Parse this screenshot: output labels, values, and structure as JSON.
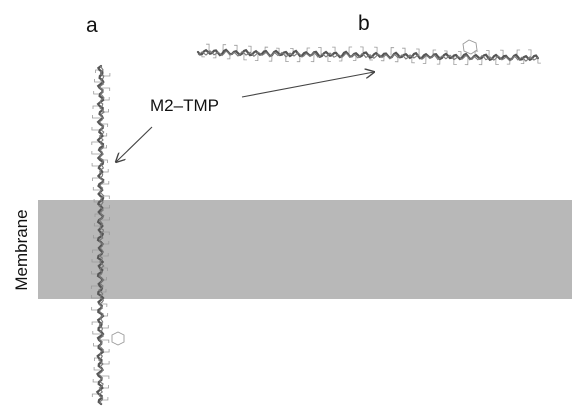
{
  "panels": {
    "a": {
      "label": "a"
    },
    "b": {
      "label": "b"
    }
  },
  "annotations": {
    "peptide": "M2–TMP",
    "membrane": "Membrane"
  },
  "colors": {
    "membrane": "#b8b8b8",
    "backbone": "#555555",
    "sidechain": "#9a9a9a",
    "arrow": "#444444",
    "text": "#111111"
  },
  "icons": {
    "helix_a": "vertical-peptide-helix",
    "helix_b": "horizontal-peptide-helix",
    "ring": "aromatic-ring-sidechain"
  }
}
